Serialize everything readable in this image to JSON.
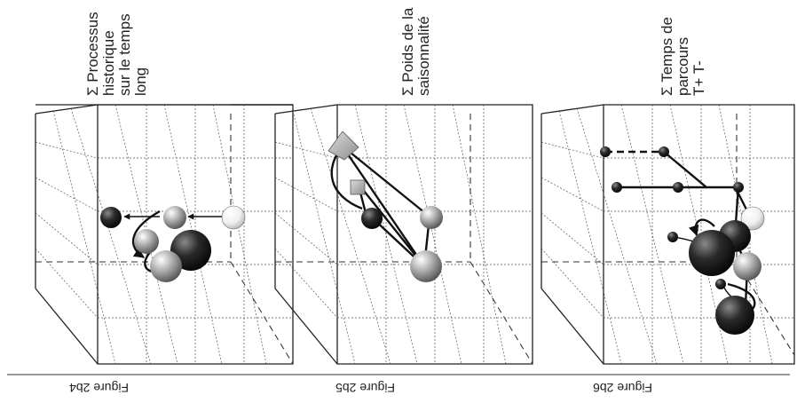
{
  "panels": [
    {
      "caption": "Figure 2b4",
      "label_lines": [
        "Σ Processus",
        "historique",
        "sur le temps",
        "long"
      ]
    },
    {
      "caption": "Figure 2b5",
      "label_lines": [
        "Σ Poids de la",
        "saisonnalité"
      ]
    },
    {
      "caption": "Figure 2b6",
      "label_lines": [
        "Σ Temps de",
        "parcours",
        "T+  T-"
      ]
    }
  ],
  "colors": {
    "dark_sphere": "#1c1c1c",
    "mid_sphere": "#9a9a9a",
    "light_sphere": "#f4f4f4",
    "edges": "#222222"
  }
}
